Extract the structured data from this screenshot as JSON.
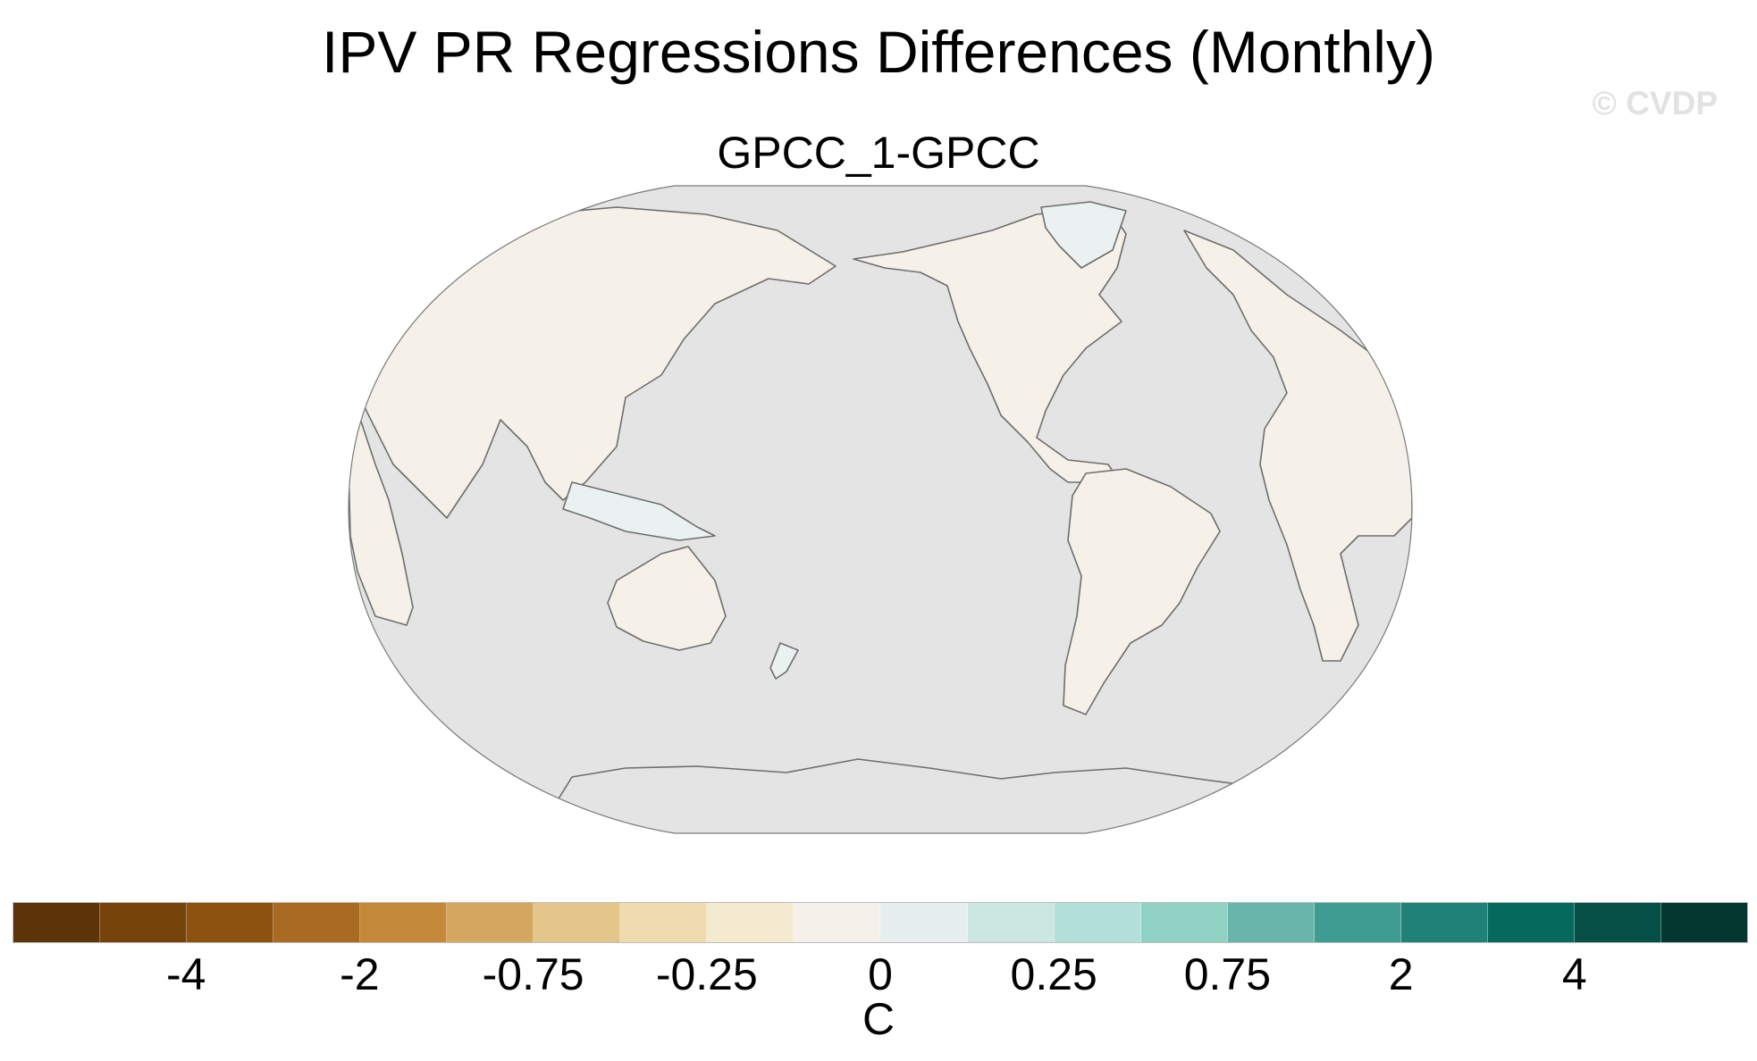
{
  "figure": {
    "title": "IPV PR Regressions Differences (Monthly)",
    "watermark": "© CVDP",
    "panel_title": "GPCC_1-GPCC"
  },
  "map": {
    "projection": "Robinson",
    "center_longitude": 180,
    "ocean_color": "#e4e4e4",
    "coastline_color": "#6e6e6e",
    "dominant_land_colors": [
      "#f5f0e8",
      "#eaf1f0"
    ]
  },
  "colorbar": {
    "units": "C",
    "colors": [
      "#5c3408",
      "#76430b",
      "#8e520f",
      "#a96b21",
      "#c48a3a",
      "#d4a75e",
      "#e2c68a",
      "#efdcae",
      "#f4ead0",
      "#f5f0ea",
      "#e6efee",
      "#cce7e2",
      "#b0e0d8",
      "#8fd2c4",
      "#68b6a9",
      "#3f9c92",
      "#1f8178",
      "#05695d",
      "#054f46",
      "#02382f"
    ],
    "tick_labels": [
      "-4",
      "-2",
      "-0.75",
      "-0.25",
      "0",
      "0.25",
      "0.75",
      "2",
      "4"
    ]
  }
}
